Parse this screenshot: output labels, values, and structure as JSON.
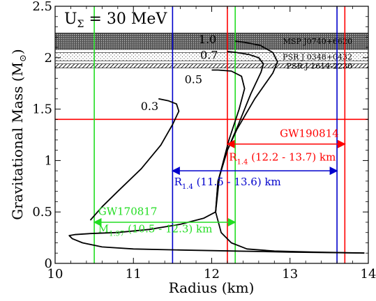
{
  "chart_data": {
    "type": "line",
    "title": "U",
    "title_sub": "Σ",
    "title_rest": " = 30 MeV",
    "xlabel": "Radius (km)",
    "ylabel_main": "Gravitational Mass (M",
    "ylabel_sub": "⊙",
    "ylabel_end": ")",
    "xlim": [
      10,
      14
    ],
    "ylim": [
      0,
      2.5
    ],
    "x_ticks": [
      10,
      11,
      12,
      13,
      14
    ],
    "x_tick_labels": [
      "10",
      "11",
      "12",
      "13",
      "14"
    ],
    "y_ticks": [
      0,
      0.5,
      1,
      1.5,
      2,
      2.5
    ],
    "y_tick_labels": [
      "0",
      "0.5",
      "1",
      "1.5",
      "2",
      "2.5"
    ],
    "colors": {
      "red": "#ff0000",
      "blue": "#0000cc",
      "green": "#22dd22",
      "black": "#000000"
    },
    "bands": [
      {
        "label": "MSP J0740+6620",
        "y1": 2.08,
        "y2": 2.24,
        "pattern": "dense"
      },
      {
        "label": "PSR J 0348+0432",
        "y1": 1.97,
        "y2": 2.05,
        "pattern": "dots"
      },
      {
        "label": "PSR J 1614-2230",
        "y1": 1.9,
        "y2": 1.94,
        "pattern": "hatch"
      }
    ],
    "series": [
      {
        "label": "1.0",
        "label_x": 12.06,
        "label_y": 2.14,
        "x": [
          13.95,
          13.3,
          12.8,
          12.45,
          12.25,
          12.12,
          12.05,
          12.08,
          12.2,
          12.32,
          12.55,
          12.78,
          12.84,
          12.78,
          12.62,
          12.42,
          12.3
        ],
        "y": [
          0.1,
          0.11,
          0.12,
          0.14,
          0.2,
          0.3,
          0.5,
          0.8,
          1.1,
          1.3,
          1.6,
          1.85,
          1.96,
          2.05,
          2.12,
          2.15,
          2.16
        ]
      },
      {
        "label": "0.7",
        "label_x": 12.08,
        "label_y": 1.99,
        "x": [
          12.05,
          12.08,
          12.2,
          12.34,
          12.5,
          12.63,
          12.66,
          12.6,
          12.48,
          12.32,
          12.2
        ],
        "y": [
          0.5,
          0.8,
          1.1,
          1.35,
          1.65,
          1.86,
          1.94,
          2.0,
          2.03,
          2.05,
          2.06
        ]
      },
      {
        "label": "0.5",
        "label_x": 11.88,
        "label_y": 1.75,
        "x": [
          12.05,
          12.1,
          12.22,
          12.35,
          12.42,
          12.38,
          12.25,
          12.08,
          12.0
        ],
        "y": [
          0.5,
          0.85,
          1.2,
          1.5,
          1.7,
          1.82,
          1.87,
          1.88,
          1.88
        ]
      },
      {
        "label": "0.3",
        "label_x": 11.32,
        "label_y": 1.49,
        "x": [
          10.45,
          10.6,
          10.8,
          11.1,
          11.35,
          11.5,
          11.58,
          11.55,
          11.45,
          11.32
        ],
        "y": [
          0.42,
          0.55,
          0.7,
          0.92,
          1.15,
          1.35,
          1.48,
          1.55,
          1.58,
          1.6
        ]
      },
      {
        "label": "",
        "label_x": 0,
        "label_y": 0,
        "x": [
          12.05,
          11.9,
          11.6,
          11.2,
          10.8,
          10.45,
          10.25,
          10.18,
          10.22,
          10.35,
          10.6,
          11.0,
          11.6,
          12.3,
          13.0,
          13.95
        ],
        "y": [
          0.5,
          0.44,
          0.38,
          0.33,
          0.3,
          0.29,
          0.28,
          0.27,
          0.24,
          0.2,
          0.16,
          0.14,
          0.13,
          0.12,
          0.11,
          0.1
        ]
      }
    ],
    "vlines": [
      {
        "x": 10.5,
        "color": "green"
      },
      {
        "x": 12.3,
        "color": "green"
      },
      {
        "x": 11.5,
        "color": "blue"
      },
      {
        "x": 13.6,
        "color": "blue"
      },
      {
        "x": 12.2,
        "color": "red"
      },
      {
        "x": 13.7,
        "color": "red"
      }
    ],
    "hline": {
      "y": 1.4,
      "color": "red"
    },
    "annotations": [
      {
        "title": "GW190814",
        "title_x": 12.87,
        "title_y": 1.23,
        "color": "red",
        "arrow_x1": 12.2,
        "arrow_x2": 13.7,
        "arrow_y": 1.16,
        "text_main": "R",
        "text_sub": "1.4",
        "text_rest": " (12.2 - 13.7) km",
        "text_x": 12.22,
        "text_y": 1.0
      },
      {
        "title": "",
        "title_x": 0,
        "title_y": 0,
        "color": "blue",
        "arrow_x1": 11.5,
        "arrow_x2": 13.6,
        "arrow_y": 0.9,
        "text_main": "R",
        "text_sub": "1.4",
        "text_rest": " (11.5 - 13.6) km",
        "text_x": 11.52,
        "text_y": 0.76
      },
      {
        "title": "GW170817",
        "title_x": 10.55,
        "title_y": 0.47,
        "color": "green",
        "arrow_x1": 10.5,
        "arrow_x2": 12.3,
        "arrow_y": 0.4,
        "text_main": "M",
        "text_sub": "1.97",
        "text_rest": " (10.5 - 12.3) km",
        "text_x": 10.55,
        "text_y": 0.3
      }
    ]
  }
}
